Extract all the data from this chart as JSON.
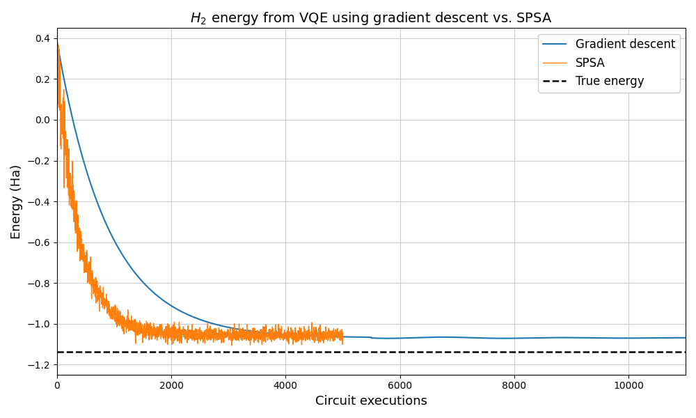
{
  "title": "$\\it{H}_2$ energy from VQE using gradient descent vs. SPSA",
  "xlabel": "Circuit executions",
  "ylabel": "Energy (Ha)",
  "xlim": [
    0,
    11000
  ],
  "ylim": [
    -1.25,
    0.45
  ],
  "true_energy": -1.137,
  "gd_color": "#1f77b4",
  "spsa_color": "#ff7f0e",
  "true_color": "#000000",
  "gd_label": "Gradient descent",
  "spsa_label": "SPSA",
  "true_label": "True energy",
  "gd_start": 0.385,
  "gd_plateau": -1.07,
  "gd_tau": 900,
  "spsa_start": 0.315,
  "spsa_plateau": -1.055,
  "spsa_tau": 380,
  "spsa_end_x": 5000,
  "spsa_noise_early": 0.05,
  "spsa_noise_late": 0.018,
  "legend_loc": "upper right",
  "grid": true
}
